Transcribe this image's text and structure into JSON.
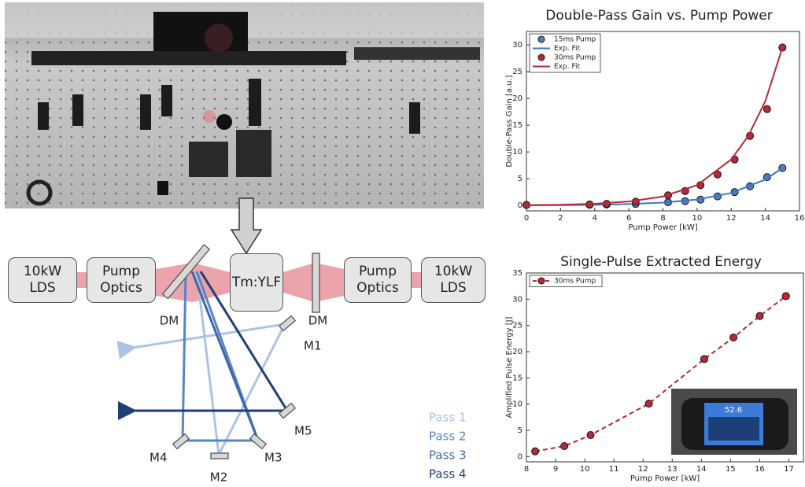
{
  "photo_inset": {
    "readout": "52.6"
  },
  "diagram": {
    "pump_left": {
      "source": "10kW LDS",
      "optics": "Pump Optics"
    },
    "crystal": "Tm:YLF",
    "pump_right": {
      "optics": "Pump Optics",
      "source": "10kW LDS"
    },
    "dichroic_left": "DM",
    "dichroic_right": "DM",
    "mirrors": [
      "M1",
      "M2",
      "M3",
      "M4",
      "M5"
    ],
    "passes": [
      "Pass 1",
      "Pass 2",
      "Pass 3",
      "Pass 4"
    ]
  },
  "chart_data": [
    {
      "type": "scatter",
      "title": "Double-Pass Gain vs. Pump Power",
      "x_label": "Pump Power [kW]",
      "y_label": "Double-Pass Gain [a.u.]",
      "xlim": [
        0,
        16
      ],
      "xticks": [
        0,
        2,
        4,
        6,
        8,
        10,
        12,
        14,
        16
      ],
      "ylim": [
        -1,
        32.5
      ],
      "yticks": [
        0,
        5,
        10,
        15,
        20,
        25,
        30
      ],
      "legend": "upper left",
      "series": [
        {
          "name": "15ms Pump",
          "color": "#4f7fc0",
          "marker": "circle",
          "x": [
            0,
            3.7,
            4.7,
            6.4,
            8.3,
            9.3,
            10.2,
            11.2,
            12.2,
            13.1,
            14.1,
            15.0
          ],
          "values": [
            0.1,
            0.15,
            0.2,
            0.3,
            0.6,
            0.8,
            1.1,
            1.7,
            2.5,
            3.6,
            5.3,
            7.0
          ]
        },
        {
          "name": "Exp. Fit",
          "color": "#3a78c0",
          "line_style": "solid",
          "x": [
            0,
            2,
            4,
            6,
            8,
            10,
            12,
            14,
            15
          ],
          "values": [
            0.03,
            0.06,
            0.12,
            0.26,
            0.54,
            1.12,
            2.33,
            4.85,
            7.0
          ]
        },
        {
          "name": "30ms Pump",
          "color": "#b8283a",
          "marker": "circle",
          "x": [
            0,
            3.7,
            4.7,
            6.4,
            8.3,
            9.3,
            10.2,
            11.2,
            12.2,
            13.1,
            14.1,
            15.0
          ],
          "values": [
            0.1,
            0.2,
            0.3,
            0.7,
            1.9,
            2.7,
            3.8,
            5.8,
            8.6,
            13,
            18,
            29.5
          ]
        },
        {
          "name": "Exp. Fit",
          "color": "#b8283a",
          "line_style": "solid",
          "x": [
            0,
            2,
            4,
            6,
            8,
            10,
            12,
            13,
            14,
            15
          ],
          "values": [
            0.06,
            0.14,
            0.33,
            0.74,
            1.68,
            3.8,
            8.6,
            13,
            19.5,
            29.5
          ]
        }
      ]
    },
    {
      "type": "line",
      "title": "Single-Pulse Extracted Energy",
      "x_label": "Pump Power [kW]",
      "y_label": "Amplified Pulse Energy [J]",
      "xlim": [
        8,
        17.5
      ],
      "xticks": [
        8,
        9,
        10,
        11,
        12,
        13,
        14,
        15,
        16,
        17
      ],
      "ylim": [
        -1,
        35
      ],
      "yticks": [
        0,
        5,
        10,
        15,
        20,
        25,
        30,
        35
      ],
      "legend": "upper left",
      "series": [
        {
          "name": "30ms Pump",
          "color": "#b8283a",
          "marker": "circle",
          "line_style": "dashed",
          "x": [
            8.3,
            9.3,
            10.2,
            12.2,
            14.1,
            15.1,
            16.0,
            16.9
          ],
          "values": [
            1,
            2,
            4.1,
            10.1,
            18.6,
            22.7,
            26.8,
            30.6
          ]
        }
      ]
    }
  ]
}
